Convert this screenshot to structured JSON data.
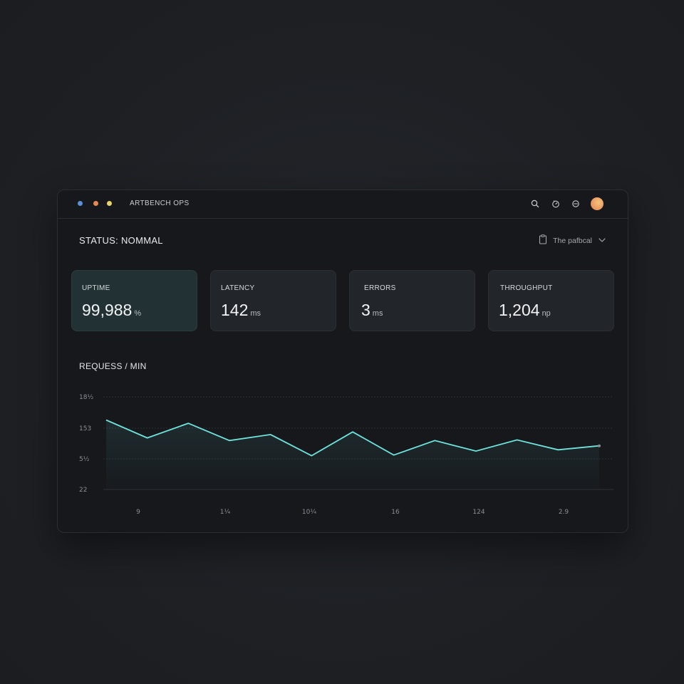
{
  "app": {
    "title": "ARTBENCH OPS",
    "window_dots": [
      {
        "name": "dot-blue",
        "color": "#5b8fd6"
      },
      {
        "name": "dot-orange",
        "color": "#e6894f"
      },
      {
        "name": "dot-yellow",
        "color": "#e8d36a"
      }
    ],
    "toolbar_icons": [
      "search-icon",
      "timer-icon",
      "refresh-icon"
    ]
  },
  "status": {
    "title": "STATUS: NOMMAL"
  },
  "environment": {
    "label": "The pafbcal",
    "icon": "clipboard-icon"
  },
  "metrics": [
    {
      "label": "UPTIME",
      "value": "99,988",
      "unit": "%"
    },
    {
      "label": "LATENCY",
      "value": "142",
      "unit": "ms"
    },
    {
      "label": "ERRORS",
      "value": "3",
      "unit": "ms"
    },
    {
      "label": "THROUGHPUT",
      "value": "1,204",
      "unit": "np"
    }
  ],
  "chart": {
    "title": "REQUESS / MIN"
  },
  "chart_data": {
    "type": "area",
    "title": "REQUESS / MIN",
    "color": "#6fe3dc",
    "y_ticks": [
      "18½",
      "153",
      "5½",
      "22"
    ],
    "x_ticks": [
      "9",
      "1¼",
      "10¼",
      "16",
      "124",
      "2.9"
    ],
    "values": [
      10.5,
      7.8,
      10.0,
      7.4,
      8.3,
      5.1,
      8.7,
      5.2,
      7.4,
      5.8,
      7.5,
      6.0,
      6.6
    ],
    "ylim": [
      0,
      14
    ],
    "grid": true
  }
}
